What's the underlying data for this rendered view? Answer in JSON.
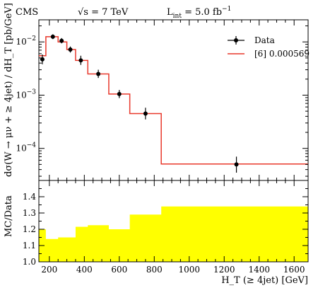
{
  "header": {
    "experiment": "CMS",
    "energy": "√s = 7 TeV",
    "lumi_prefix": "L",
    "lumi_sub": "int",
    "lumi_value": " = 5.0 fb",
    "lumi_sup": "−1"
  },
  "chart_data": [
    {
      "type": "line",
      "panel": "main",
      "ylabel": "dσ(W → μν + ≥ 4jet) / dH_T [pb/GeV]",
      "yscale": "log",
      "ylim": [
        2.5e-05,
        0.026
      ],
      "xlim": [
        140,
        1680
      ],
      "yticks": [
        {
          "value": 0.0001,
          "base": "10",
          "exp": "−4"
        },
        {
          "value": 0.001,
          "base": "10",
          "exp": "−3"
        },
        {
          "value": 0.01,
          "base": "10",
          "exp": "−2"
        }
      ],
      "legend": {
        "position": "top-right",
        "entries": [
          "Data",
          "[6] 0.000569"
        ]
      },
      "series": [
        {
          "name": "Data",
          "style": "points-with-errors",
          "color": "#000000",
          "points": [
            {
              "x": 160,
              "y": 0.0047,
              "ylo": 0.0038,
              "yhi": 0.0058
            },
            {
              "x": 220,
              "y": 0.0125,
              "ylo": 0.0113,
              "yhi": 0.0139
            },
            {
              "x": 270,
              "y": 0.0105,
              "ylo": 0.0094,
              "yhi": 0.0118
            },
            {
              "x": 320,
              "y": 0.0072,
              "ylo": 0.0063,
              "yhi": 0.0082
            },
            {
              "x": 380,
              "y": 0.0045,
              "ylo": 0.0037,
              "yhi": 0.0055
            },
            {
              "x": 480,
              "y": 0.0025,
              "ylo": 0.0021,
              "yhi": 0.003
            },
            {
              "x": 600,
              "y": 0.00105,
              "ylo": 0.00088,
              "yhi": 0.00125
            },
            {
              "x": 750,
              "y": 0.00045,
              "ylo": 0.00035,
              "yhi": 0.00058
            },
            {
              "x": 1270,
              "y": 5e-05,
              "ylo": 3.5e-05,
              "yhi": 7e-05
            }
          ]
        },
        {
          "name": "[6] 0.000569",
          "style": "step",
          "color": "#e8382b",
          "bins": [
            {
              "lo": 140,
              "hi": 180,
              "y": 0.0055
            },
            {
              "lo": 180,
              "hi": 250,
              "y": 0.0125
            },
            {
              "lo": 250,
              "hi": 300,
              "y": 0.01
            },
            {
              "lo": 300,
              "hi": 350,
              "y": 0.0072
            },
            {
              "lo": 350,
              "hi": 420,
              "y": 0.0045
            },
            {
              "lo": 420,
              "hi": 540,
              "y": 0.0025
            },
            {
              "lo": 540,
              "hi": 660,
              "y": 0.00105
            },
            {
              "lo": 660,
              "hi": 840,
              "y": 0.00045
            },
            {
              "lo": 840,
              "hi": 1680,
              "y": 5.1e-05
            }
          ]
        }
      ]
    },
    {
      "type": "area",
      "panel": "ratio",
      "ylabel": "MC/Data",
      "xlabel": "H_T (≥ 4jet) [GeV]",
      "ylim": [
        1.0,
        1.5
      ],
      "xlim": [
        140,
        1680
      ],
      "yticks": [
        "1.0",
        "1.1",
        "1.2",
        "1.3",
        "1.4"
      ],
      "xticks": [
        "200",
        "400",
        "600",
        "800",
        "1000",
        "1200",
        "1400",
        "1600"
      ],
      "color": "#ffff00",
      "bins": [
        {
          "lo": 140,
          "hi": 180,
          "y": 1.2
        },
        {
          "lo": 180,
          "hi": 250,
          "y": 1.14
        },
        {
          "lo": 250,
          "hi": 350,
          "y": 1.15
        },
        {
          "lo": 350,
          "hi": 420,
          "y": 1.215
        },
        {
          "lo": 420,
          "hi": 540,
          "y": 1.225
        },
        {
          "lo": 540,
          "hi": 660,
          "y": 1.2
        },
        {
          "lo": 660,
          "hi": 840,
          "y": 1.29
        },
        {
          "lo": 840,
          "hi": 1680,
          "y": 1.34
        }
      ]
    }
  ]
}
